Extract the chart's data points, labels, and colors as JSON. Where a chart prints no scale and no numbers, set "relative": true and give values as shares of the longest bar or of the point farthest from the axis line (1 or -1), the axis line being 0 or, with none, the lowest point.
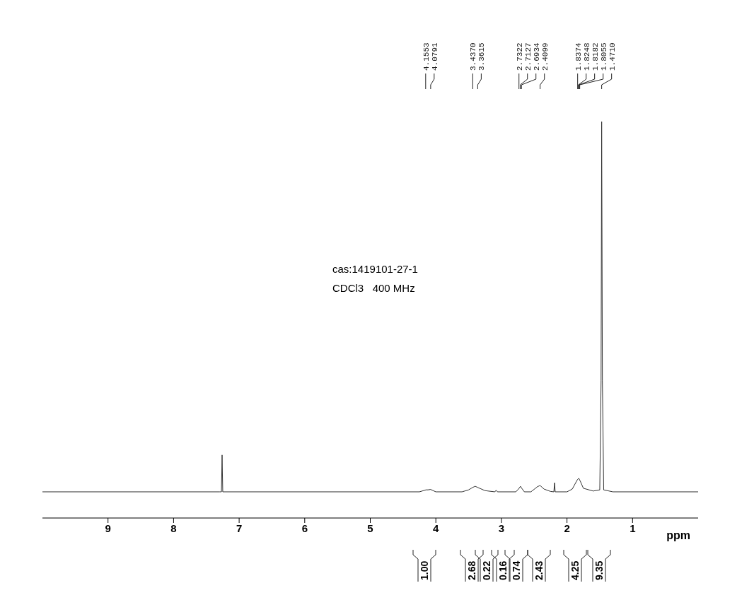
{
  "chart_data": {
    "type": "line",
    "relative": true,
    "xlabel": "ppm",
    "title": "cas:1419101-27-1",
    "subtitle": "CDCl3   400 MHz",
    "xlim": [
      10,
      0
    ],
    "xticks": [
      9,
      8,
      7,
      6,
      5,
      4,
      3,
      2,
      1
    ],
    "x": [
      10,
      7.3,
      7.27,
      7.26,
      7.25,
      4.25,
      4.15,
      4.12,
      4.08,
      4.0,
      3.6,
      3.5,
      3.44,
      3.4,
      3.36,
      3.25,
      3.1,
      3.08,
      3.06,
      2.78,
      2.73,
      2.71,
      2.69,
      2.65,
      2.55,
      2.45,
      2.41,
      2.35,
      2.25,
      2.2,
      2.19,
      2.18,
      2.0,
      1.92,
      1.84,
      1.82,
      1.8,
      1.75,
      1.6,
      1.5,
      1.48,
      1.471,
      1.46,
      1.44,
      1.3,
      0
    ],
    "series": [
      {
        "color": "#333333",
        "values": [
          0.066,
          0.066,
          0.066,
          0.159,
          0.066,
          0.066,
          0.071,
          0.071,
          0.072,
          0.066,
          0.066,
          0.071,
          0.077,
          0.08,
          0.077,
          0.069,
          0.066,
          0.07,
          0.066,
          0.066,
          0.075,
          0.08,
          0.075,
          0.066,
          0.066,
          0.079,
          0.082,
          0.073,
          0.067,
          0.066,
          0.089,
          0.066,
          0.066,
          0.073,
          0.097,
          0.1,
          0.094,
          0.075,
          0.068,
          0.071,
          0.346,
          1,
          0.346,
          0.071,
          0.066,
          0.066
        ]
      }
    ],
    "annotations": [
      {
        "text": "4.1553",
        "x": 4.1553
      },
      {
        "text": "4.0791",
        "x": 4.0791
      },
      {
        "text": "3.4370",
        "x": 3.437
      },
      {
        "text": "3.3615",
        "x": 3.3615
      },
      {
        "text": "2.7322",
        "x": 2.7322
      },
      {
        "text": "2.7127",
        "x": 2.7127
      },
      {
        "text": "2.6934",
        "x": 2.6934
      },
      {
        "text": "2.4099",
        "x": 2.4099
      },
      {
        "text": "1.8374",
        "x": 1.8374
      },
      {
        "text": "1.8248",
        "x": 1.8248
      },
      {
        "text": "1.8182",
        "x": 1.8182
      },
      {
        "text": "1.8055",
        "x": 1.8055
      },
      {
        "text": "1.4710",
        "x": 1.471
      },
      "1.00",
      "2.68",
      "0.22",
      "0.16",
      "0.74",
      "2.43",
      "4.25",
      "9.35"
    ]
  }
}
